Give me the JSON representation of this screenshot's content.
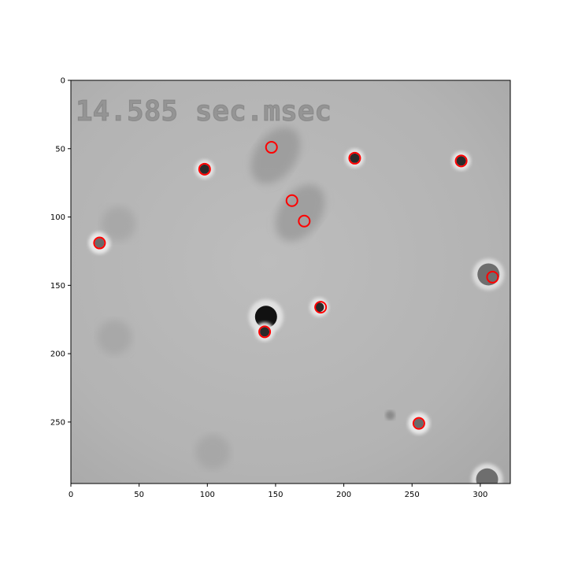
{
  "image": {
    "overlay_text": "14.585 sec.msec",
    "overlay_color": "#8a8a8a",
    "background": "#b9b9b9"
  },
  "axes": {
    "xlim": [
      0,
      322
    ],
    "ylim": [
      295,
      0
    ],
    "xticks": [
      0,
      50,
      100,
      150,
      200,
      250,
      300
    ],
    "yticks": [
      0,
      50,
      100,
      150,
      200,
      250
    ]
  },
  "markers": {
    "color": "#ff0000",
    "shape": "circle",
    "points": [
      {
        "x": 147,
        "y": 49
      },
      {
        "x": 208,
        "y": 57
      },
      {
        "x": 286,
        "y": 59
      },
      {
        "x": 98,
        "y": 65
      },
      {
        "x": 162,
        "y": 88
      },
      {
        "x": 171,
        "y": 103
      },
      {
        "x": 21,
        "y": 119
      },
      {
        "x": 309,
        "y": 144
      },
      {
        "x": 183,
        "y": 166
      },
      {
        "x": 142,
        "y": 184
      },
      {
        "x": 255,
        "y": 251
      }
    ]
  },
  "particles": [
    {
      "x": 98,
      "y": 65,
      "tone": "dark-small"
    },
    {
      "x": 208,
      "y": 57,
      "tone": "dark-small"
    },
    {
      "x": 286,
      "y": 59,
      "tone": "dark-small"
    },
    {
      "x": 21,
      "y": 119,
      "tone": "bright-ring"
    },
    {
      "x": 143,
      "y": 173,
      "tone": "black-large"
    },
    {
      "x": 142,
      "y": 184,
      "tone": "dark-small"
    },
    {
      "x": 182,
      "y": 166,
      "tone": "dark-small"
    },
    {
      "x": 255,
      "y": 251,
      "tone": "bright-ring"
    },
    {
      "x": 234,
      "y": 245,
      "tone": "faint"
    },
    {
      "x": 306,
      "y": 142,
      "tone": "grey-large"
    },
    {
      "x": 32,
      "y": 188,
      "tone": "blur"
    },
    {
      "x": 104,
      "y": 272,
      "tone": "blur"
    },
    {
      "x": 35,
      "y": 105,
      "tone": "blur"
    },
    {
      "x": 150,
      "y": 55,
      "tone": "blur-cell"
    },
    {
      "x": 168,
      "y": 97,
      "tone": "blur-cell"
    },
    {
      "x": 305,
      "y": 292,
      "tone": "grey-large"
    }
  ]
}
